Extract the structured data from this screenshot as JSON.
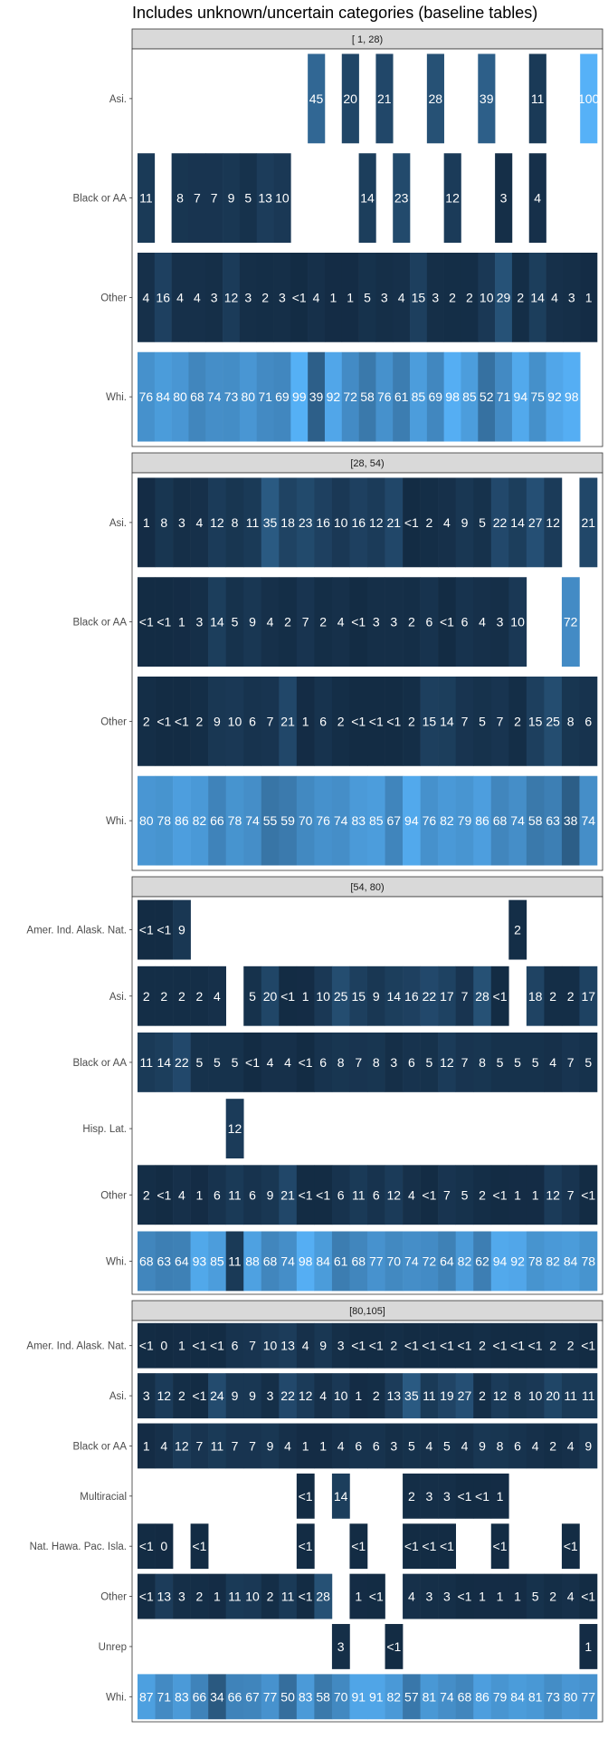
{
  "chart_data": {
    "type": "heatmap",
    "title": "Includes unknown/uncertain categories (baseline tables)",
    "color_scale": {
      "low": "#132B43",
      "high": "#56B1F7",
      "domain": [
        0,
        100
      ]
    },
    "panels": [
      {
        "strip": "[ 1, 28)",
        "rows": [
          {
            "category": "Asi.",
            "cells": [
              "",
              "",
              "",
              "",
              "",
              "",
              "",
              "",
              "",
              "",
              "45",
              "",
              "20",
              "",
              "21",
              "",
              "",
              "28",
              "",
              "",
              "39",
              "",
              "",
              "11",
              "",
              "",
              "100"
            ]
          },
          {
            "category": "Black or AA",
            "cells": [
              "11",
              "",
              "8",
              "7",
              "7",
              "9",
              "5",
              "13",
              "10",
              "",
              "",
              "",
              "",
              "14",
              "",
              "23",
              "",
              "",
              "12",
              "",
              "",
              "3",
              "",
              "4",
              "",
              "",
              ""
            ]
          },
          {
            "category": "Other",
            "cells": [
              "4",
              "16",
              "4",
              "4",
              "3",
              "12",
              "3",
              "2",
              "3",
              "<1",
              "4",
              "1",
              "1",
              "5",
              "3",
              "4",
              "15",
              "3",
              "2",
              "2",
              "10",
              "29",
              "2",
              "14",
              "4",
              "3",
              "1"
            ]
          },
          {
            "category": "Whi.",
            "cells": [
              "76",
              "84",
              "80",
              "68",
              "74",
              "73",
              "80",
              "71",
              "69",
              "99",
              "39",
              "92",
              "72",
              "58",
              "76",
              "61",
              "85",
              "69",
              "98",
              "85",
              "52",
              "71",
              "94",
              "75",
              "92",
              "98",
              ""
            ]
          }
        ]
      },
      {
        "strip": "[28, 54)",
        "rows": [
          {
            "category": "Asi.",
            "cells": [
              "1",
              "8",
              "3",
              "4",
              "12",
              "8",
              "11",
              "35",
              "18",
              "23",
              "16",
              "10",
              "16",
              "12",
              "21",
              "<1",
              "2",
              "4",
              "9",
              "5",
              "22",
              "14",
              "27",
              "12",
              "",
              "21"
            ]
          },
          {
            "category": "Black or AA",
            "cells": [
              "<1",
              "<1",
              "1",
              "3",
              "14",
              "5",
              "9",
              "4",
              "2",
              "7",
              "2",
              "4",
              "<1",
              "3",
              "3",
              "2",
              "6",
              "<1",
              "6",
              "4",
              "3",
              "10",
              "",
              "",
              "72",
              ""
            ]
          },
          {
            "category": "Other",
            "cells": [
              "2",
              "<1",
              "<1",
              "2",
              "9",
              "10",
              "6",
              "7",
              "21",
              "1",
              "6",
              "2",
              "<1",
              "<1",
              "<1",
              "2",
              "15",
              "14",
              "7",
              "5",
              "7",
              "2",
              "15",
              "25",
              "8",
              "6"
            ]
          },
          {
            "category": "Whi.",
            "cells": [
              "80",
              "78",
              "86",
              "82",
              "66",
              "78",
              "74",
              "55",
              "59",
              "70",
              "76",
              "74",
              "83",
              "85",
              "67",
              "94",
              "76",
              "82",
              "79",
              "86",
              "68",
              "74",
              "58",
              "63",
              "38",
              "74"
            ]
          }
        ]
      },
      {
        "strip": "[54, 80)",
        "rows": [
          {
            "category": "Amer. Ind. Alask. Nat.",
            "cells": [
              "<1",
              "<1",
              "9",
              "",
              "",
              "",
              "",
              "",
              "",
              "",
              "",
              "",
              "",
              "",
              "",
              "",
              "",
              "",
              "",
              "",
              "",
              "2",
              "",
              "",
              "",
              ""
            ]
          },
          {
            "category": "Asi.",
            "cells": [
              "2",
              "2",
              "2",
              "2",
              "4",
              "",
              "5",
              "20",
              "<1",
              "1",
              "10",
              "25",
              "15",
              "9",
              "14",
              "16",
              "22",
              "17",
              "7",
              "28",
              "<1",
              "",
              "18",
              "2",
              "2",
              "17"
            ]
          },
          {
            "category": "Black or AA",
            "cells": [
              "11",
              "14",
              "22",
              "5",
              "5",
              "5",
              "<1",
              "4",
              "4",
              "<1",
              "6",
              "8",
              "7",
              "8",
              "3",
              "6",
              "5",
              "12",
              "7",
              "8",
              "5",
              "5",
              "5",
              "4",
              "7",
              "5"
            ]
          },
          {
            "category": "Hisp. Lat.",
            "cells": [
              "",
              "",
              "",
              "",
              "",
              "12",
              "",
              "",
              "",
              "",
              "",
              "",
              "",
              "",
              "",
              "",
              "",
              "",
              "",
              "",
              "",
              "",
              "",
              "",
              "",
              ""
            ]
          },
          {
            "category": "Other",
            "cells": [
              "2",
              "<1",
              "4",
              "1",
              "6",
              "11",
              "6",
              "9",
              "21",
              "<1",
              "<1",
              "6",
              "11",
              "6",
              "12",
              "4",
              "<1",
              "7",
              "5",
              "2",
              "<1",
              "1",
              "1",
              "12",
              "7",
              "<1"
            ]
          },
          {
            "category": "Whi.",
            "cells": [
              "68",
              "63",
              "64",
              "93",
              "85",
              "11",
              "88",
              "68",
              "74",
              "98",
              "84",
              "61",
              "68",
              "77",
              "70",
              "74",
              "72",
              "64",
              "82",
              "62",
              "94",
              "92",
              "78",
              "82",
              "84",
              "78"
            ]
          }
        ]
      },
      {
        "strip": "[80,105]",
        "rows": [
          {
            "category": "Amer. Ind. Alask. Nat.",
            "cells": [
              "<1",
              "0",
              "1",
              "<1",
              "<1",
              "6",
              "7",
              "10",
              "13",
              "4",
              "9",
              "3",
              "<1",
              "<1",
              "2",
              "<1",
              "<1",
              "<1",
              "<1",
              "2",
              "<1",
              "<1",
              "<1",
              "2",
              "2",
              "<1"
            ]
          },
          {
            "category": "Asi.",
            "cells": [
              "3",
              "12",
              "2",
              "<1",
              "24",
              "9",
              "9",
              "3",
              "22",
              "12",
              "4",
              "10",
              "1",
              "2",
              "13",
              "35",
              "11",
              "19",
              "27",
              "2",
              "12",
              "8",
              "10",
              "20",
              "11",
              "11"
            ]
          },
          {
            "category": "Black or AA",
            "cells": [
              "1",
              "4",
              "12",
              "7",
              "11",
              "7",
              "7",
              "9",
              "4",
              "1",
              "1",
              "4",
              "6",
              "6",
              "3",
              "5",
              "4",
              "5",
              "4",
              "9",
              "8",
              "6",
              "4",
              "2",
              "4",
              "9"
            ]
          },
          {
            "category": "Multiracial",
            "cells": [
              "",
              "",
              "",
              "",
              "",
              "",
              "",
              "",
              "",
              "<1",
              "",
              "14",
              "",
              "",
              "",
              "2",
              "3",
              "3",
              "<1",
              "<1",
              "1",
              "",
              "",
              "",
              "",
              ""
            ]
          },
          {
            "category": "Nat. Hawa. Pac. Isla.",
            "cells": [
              "<1",
              "0",
              "",
              "<1",
              "",
              "",
              "",
              "",
              "",
              "<1",
              "",
              "",
              "<1",
              "",
              "",
              "<1",
              "<1",
              "<1",
              "",
              "",
              "<1",
              "",
              "",
              "",
              "<1",
              ""
            ]
          },
          {
            "category": "Other",
            "cells": [
              "<1",
              "13",
              "3",
              "2",
              "1",
              "11",
              "10",
              "2",
              "11",
              "<1",
              "28",
              "",
              "1",
              "<1",
              "",
              "4",
              "3",
              "3",
              "<1",
              "1",
              "1",
              "1",
              "5",
              "2",
              "4",
              "<1"
            ]
          },
          {
            "category": "Unrep",
            "cells": [
              "",
              "",
              "",
              "",
              "",
              "",
              "",
              "",
              "",
              "",
              "",
              "3",
              "",
              "",
              "<1",
              "",
              "",
              "",
              "",
              "",
              "",
              "",
              "",
              "",
              "",
              "1"
            ]
          },
          {
            "category": "Whi.",
            "cells": [
              "87",
              "71",
              "83",
              "66",
              "34",
              "66",
              "67",
              "77",
              "50",
              "83",
              "58",
              "70",
              "91",
              "91",
              "82",
              "57",
              "81",
              "74",
              "68",
              "86",
              "79",
              "84",
              "81",
              "73",
              "80",
              "77"
            ]
          }
        ]
      }
    ]
  }
}
